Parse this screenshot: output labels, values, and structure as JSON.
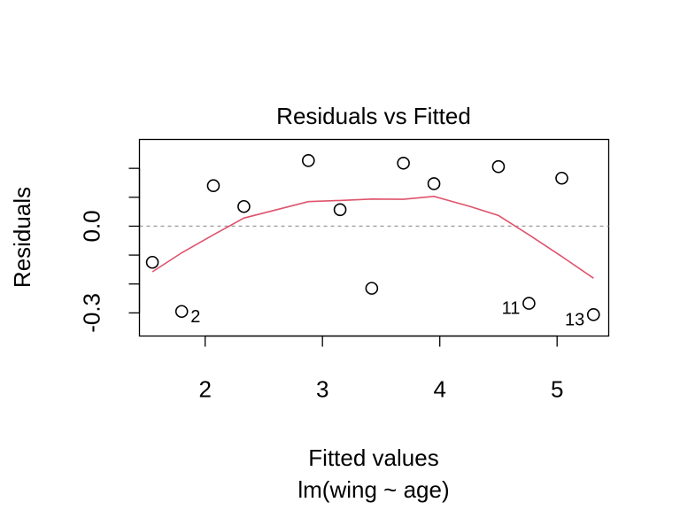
{
  "chart_data": {
    "type": "scatter",
    "title": "Residuals vs Fitted",
    "xlabel": "Fitted values",
    "subtitle": "lm(wing ~ age)",
    "ylabel": "Residuals",
    "xlim": [
      1.44,
      5.44
    ],
    "ylim": [
      -0.38,
      0.3
    ],
    "x_ticks": [
      2,
      3,
      4,
      5
    ],
    "x_tick_labels": [
      "2",
      "3",
      "4",
      "5"
    ],
    "y_ticks": [
      -0.3,
      -0.2,
      -0.1,
      0.0,
      0.1,
      0.2
    ],
    "y_tick_labels": [
      "-0.3",
      "",
      "",
      "0.0",
      "",
      ""
    ],
    "grid": false,
    "reference_line": 0.0,
    "points": [
      {
        "x": 1.55,
        "y": -0.125,
        "label": ""
      },
      {
        "x": 1.8,
        "y": -0.295,
        "label": "2"
      },
      {
        "x": 2.07,
        "y": 0.14,
        "label": ""
      },
      {
        "x": 2.33,
        "y": 0.068,
        "label": ""
      },
      {
        "x": 2.88,
        "y": 0.227,
        "label": ""
      },
      {
        "x": 3.15,
        "y": 0.057,
        "label": ""
      },
      {
        "x": 3.42,
        "y": -0.215,
        "label": ""
      },
      {
        "x": 3.69,
        "y": 0.218,
        "label": ""
      },
      {
        "x": 3.95,
        "y": 0.147,
        "label": ""
      },
      {
        "x": 4.5,
        "y": 0.206,
        "label": ""
      },
      {
        "x": 4.76,
        "y": -0.267,
        "label": "11"
      },
      {
        "x": 5.04,
        "y": 0.166,
        "label": ""
      },
      {
        "x": 5.31,
        "y": -0.306,
        "label": "13"
      }
    ],
    "smooth": {
      "x": [
        1.55,
        1.8,
        2.07,
        2.33,
        2.88,
        3.15,
        3.42,
        3.69,
        3.95,
        4.25,
        4.5,
        4.76,
        5.04,
        5.31
      ],
      "y": [
        -0.158,
        -0.092,
        -0.03,
        0.028,
        0.085,
        0.089,
        0.094,
        0.093,
        0.103,
        0.069,
        0.037,
        -0.03,
        -0.105,
        -0.18
      ]
    },
    "colors": {
      "points": "#000000",
      "smooth": "#DF536B",
      "reference": "#9E9E9E"
    }
  }
}
